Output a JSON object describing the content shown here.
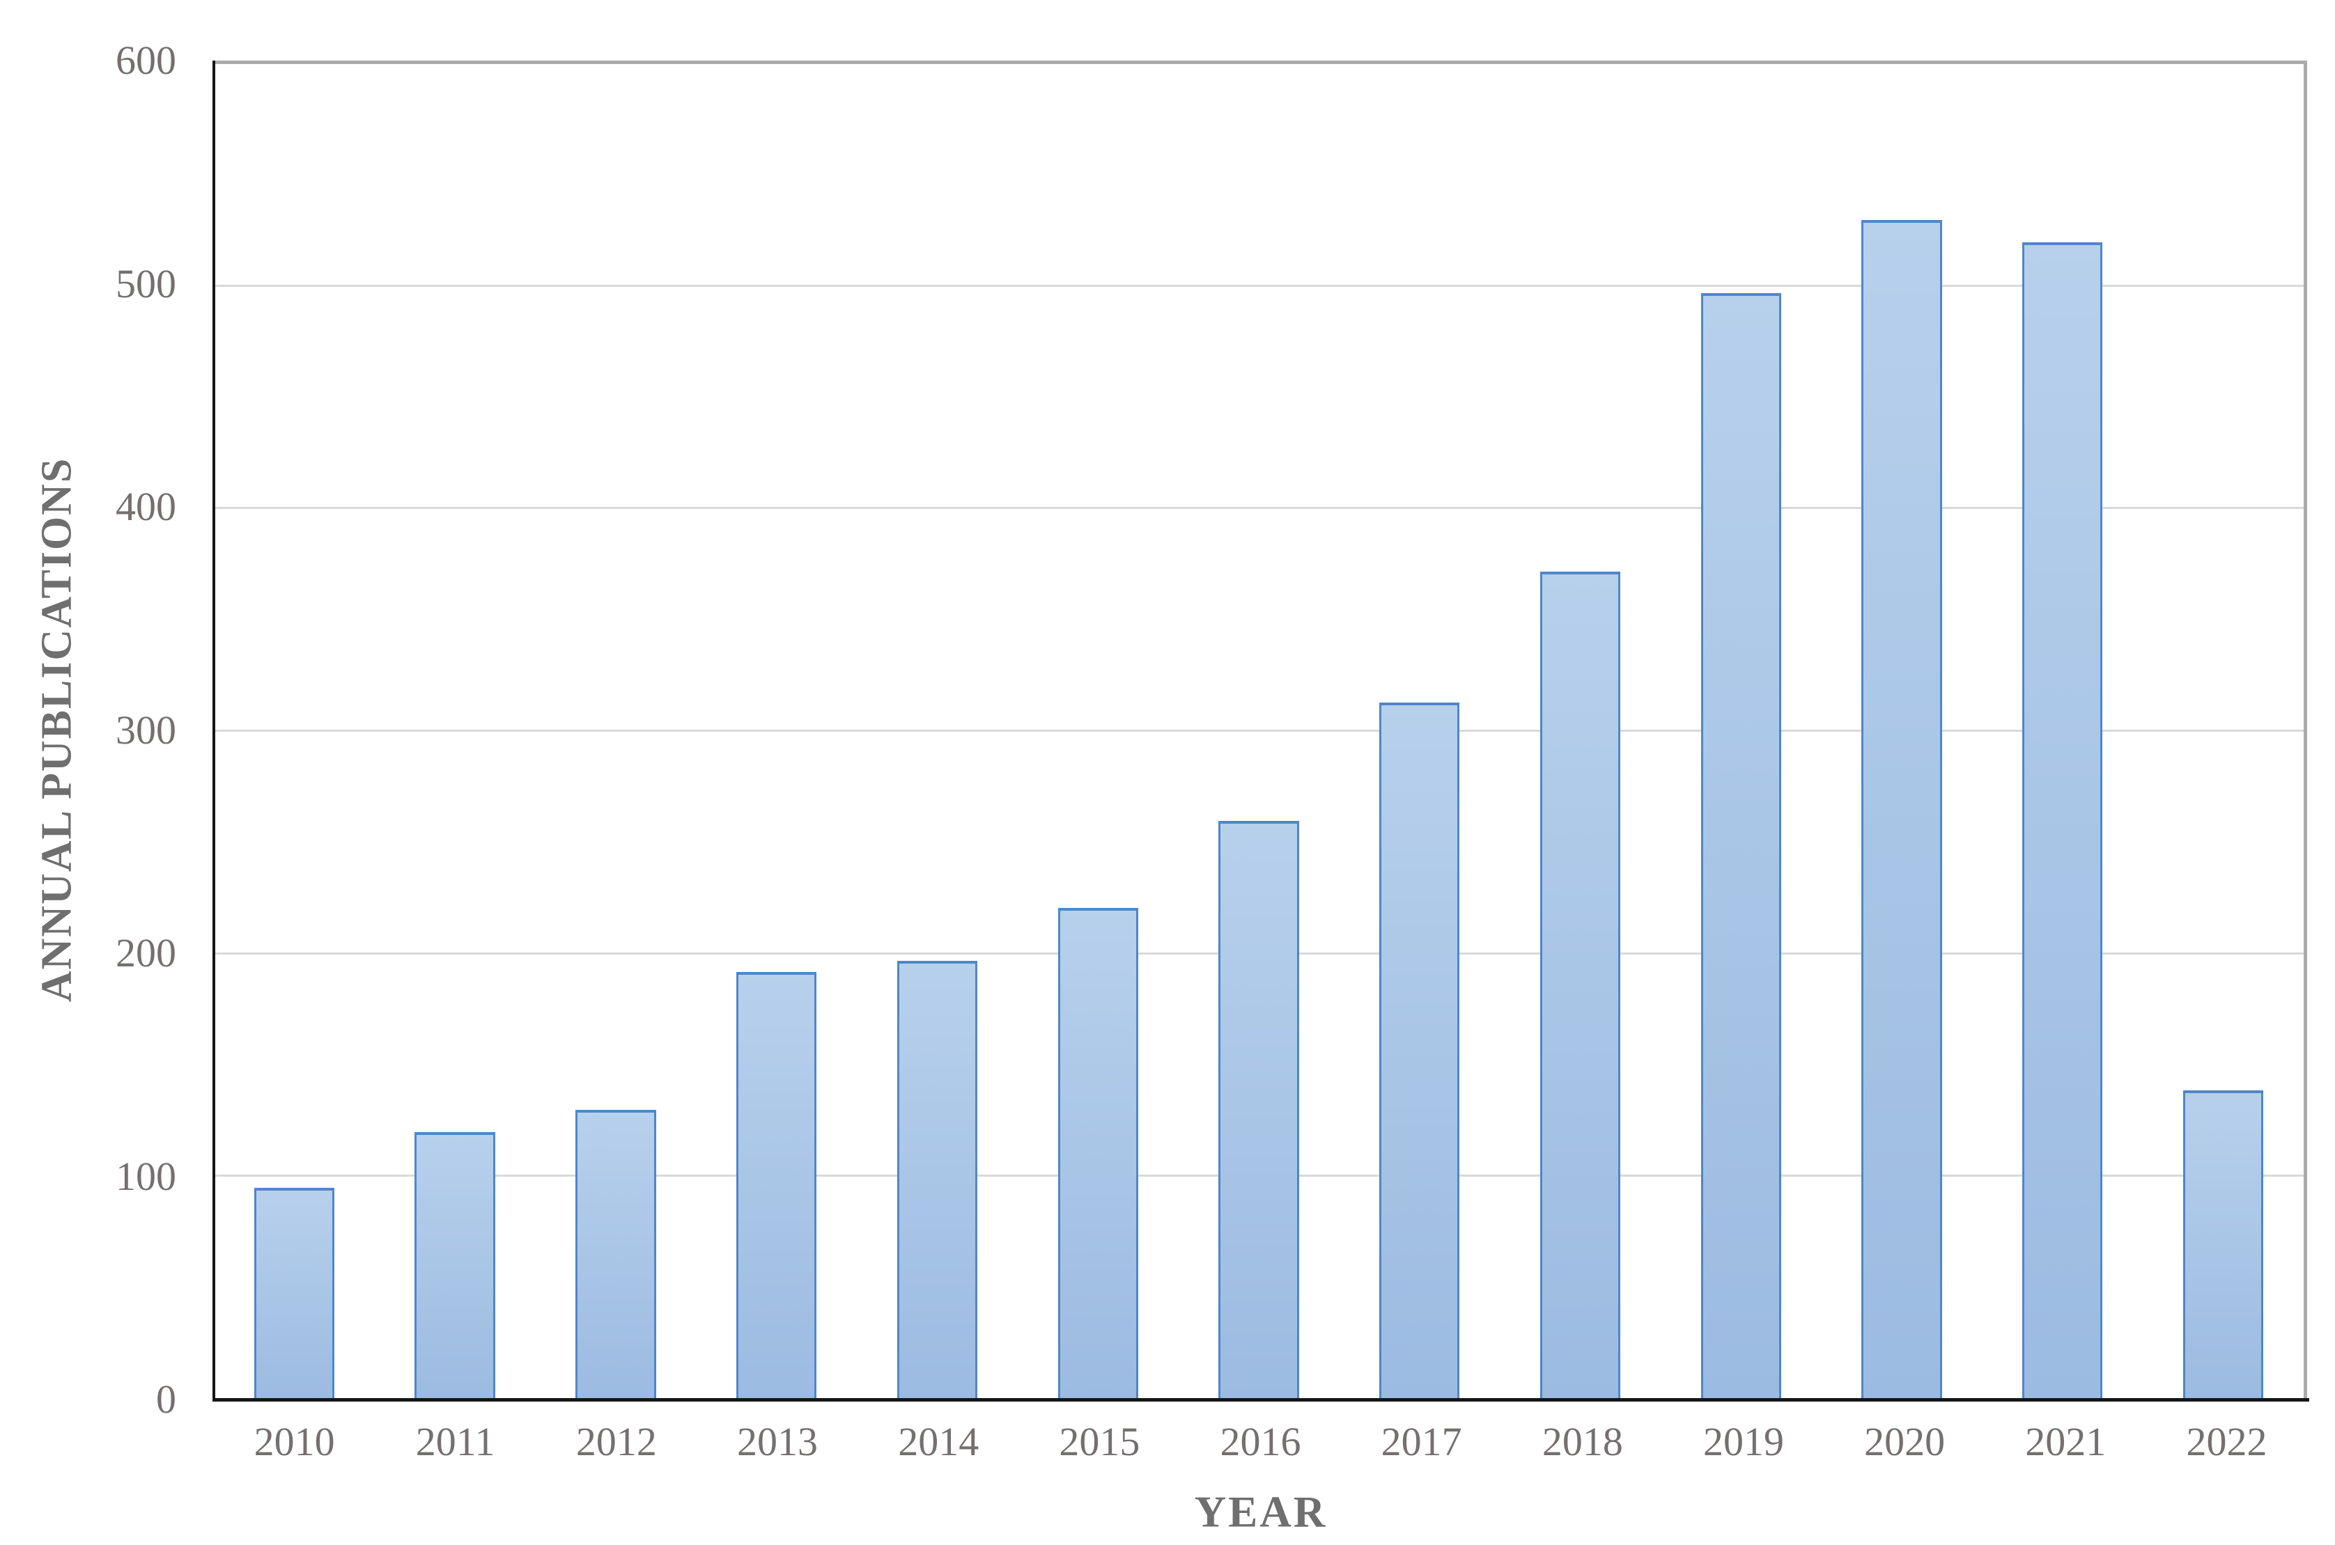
{
  "chart_data": {
    "type": "bar",
    "title": "",
    "xlabel": "YEAR",
    "ylabel": "ANNUAL PUBLICATIONS",
    "categories": [
      "2010",
      "2011",
      "2012",
      "2013",
      "2014",
      "2015",
      "2016",
      "2017",
      "2018",
      "2019",
      "2020",
      "2021",
      "2022"
    ],
    "values": [
      95,
      120,
      130,
      192,
      197,
      221,
      260,
      313,
      372,
      497,
      530,
      520,
      139
    ],
    "ylim": [
      0,
      600
    ],
    "yticks": [
      0,
      100,
      200,
      300,
      400,
      500,
      600
    ],
    "grid": true,
    "legend": false,
    "bar_width_fraction_of_slot": 0.5
  },
  "style": {
    "background": "#FFFFFF",
    "bar_fill_top": "#B7D0EC",
    "bar_fill_bottom": "#9CBBE1",
    "bar_border": "#4F87C8",
    "gridline": "#D9D9D9",
    "plot_border": "#ABABAB",
    "axis_line": "#161616",
    "tick_text": "#757070",
    "title_text": "#6F6F6F"
  }
}
